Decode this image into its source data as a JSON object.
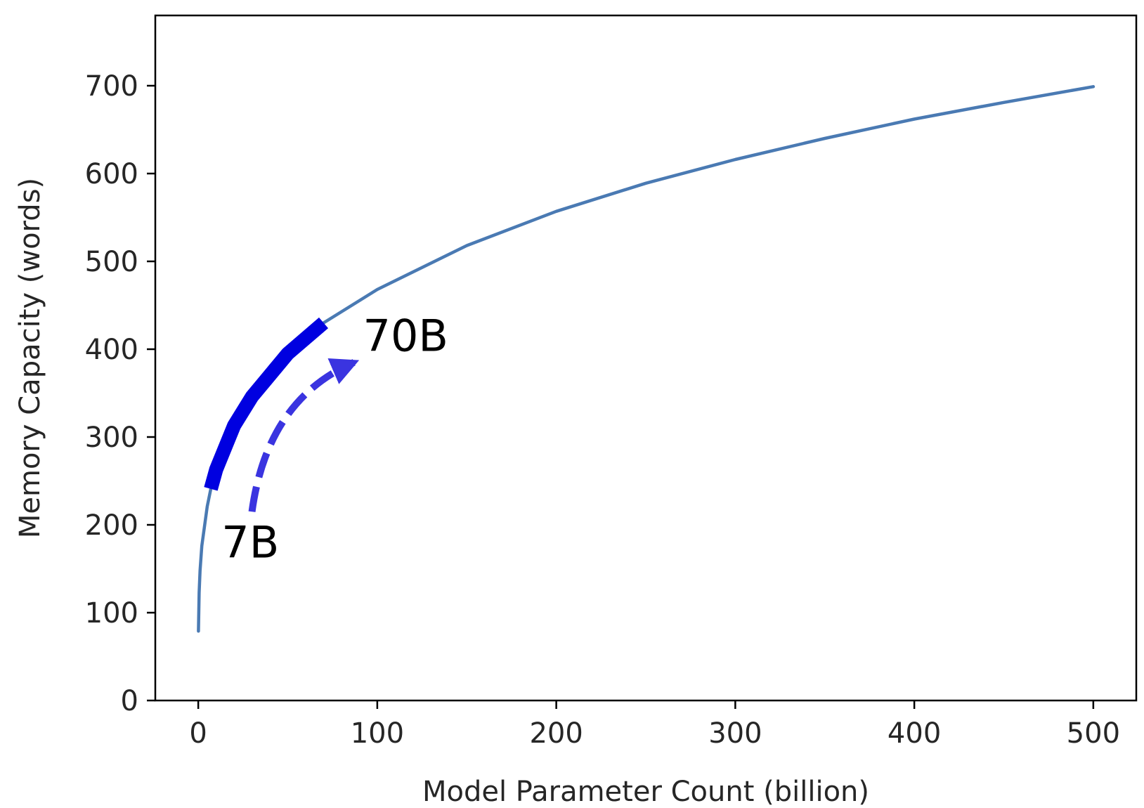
{
  "chart_data": {
    "type": "line",
    "xlabel": "Model Parameter Count (billion)",
    "ylabel": "Memory Capacity (words)",
    "xlim": [
      -24,
      524
    ],
    "ylim": [
      0,
      780
    ],
    "xticks": [
      0,
      100,
      200,
      300,
      400,
      500
    ],
    "yticks": [
      0,
      100,
      200,
      300,
      400,
      500,
      600,
      700
    ],
    "xtick_labels": [
      "0",
      "100",
      "200",
      "300",
      "400",
      "500"
    ],
    "ytick_labels": [
      "0",
      "100",
      "200",
      "300",
      "400",
      "500",
      "600",
      "700"
    ],
    "grid": false,
    "series": [
      {
        "x": [
          0.1,
          0.5,
          1,
          2,
          5,
          7,
          10,
          20,
          30,
          50,
          70,
          100,
          150,
          200,
          250,
          300,
          350,
          400,
          450,
          500
        ],
        "y": [
          79,
          123,
          148,
          176,
          221,
          241,
          263,
          313,
          346,
          395,
          430,
          468,
          518,
          557,
          589,
          616,
          640,
          662,
          681,
          699
        ],
        "color": "#4a7ab3"
      }
    ],
    "highlight": {
      "x_from": 7,
      "x_to": 70,
      "color": "#0000e0"
    },
    "annotations": [
      {
        "text": "7B",
        "x": 13,
        "y": 163
      },
      {
        "text": "70B",
        "x": 92,
        "y": 398
      }
    ],
    "arrow": {
      "from": [
        30,
        215
      ],
      "to": [
        87,
        385
      ],
      "color": "#3a34e0",
      "style": "dashed"
    }
  }
}
